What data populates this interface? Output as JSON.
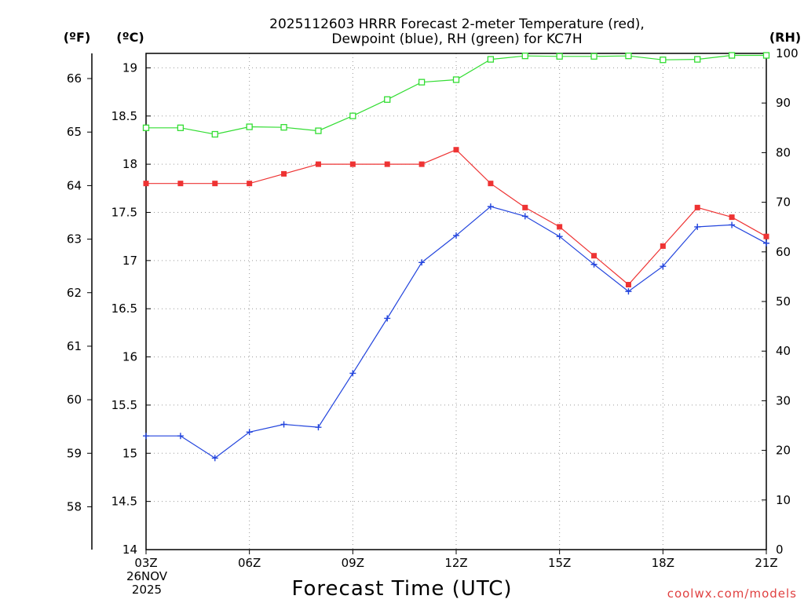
{
  "chart_data": {
    "type": "line",
    "title_line1": "2025112603 HRRR Forecast 2-meter Temperature (red),",
    "title_line2": "Dewpoint (blue), RH (green) for KC7H",
    "xlabel": "Forecast Time (UTC)",
    "credit": "coolwx.com/models",
    "date_label_line1": "26NOV",
    "date_label_line2": "2025",
    "units": {
      "fahrenheit": "(ºF)",
      "celsius": "(ºC)",
      "rh": "(RH)"
    },
    "x_hours": [
      3,
      4,
      5,
      6,
      7,
      8,
      9,
      10,
      11,
      12,
      13,
      14,
      15,
      16,
      17,
      18,
      19,
      20,
      21
    ],
    "x_ticks": [
      "03Z",
      "06Z",
      "09Z",
      "12Z",
      "15Z",
      "18Z",
      "21Z"
    ],
    "y_celsius": {
      "ylim": [
        14.0,
        19.15
      ],
      "ticks": [
        "14",
        "14.5",
        "15",
        "15.5",
        "16",
        "16.5",
        "17",
        "17.5",
        "18",
        "18.5",
        "19"
      ]
    },
    "y_fahrenheit": {
      "ticks": [
        "58",
        "59",
        "60",
        "61",
        "62",
        "63",
        "64",
        "65",
        "66"
      ]
    },
    "y_rh": {
      "ylim": [
        0,
        100
      ],
      "ticks": [
        "0",
        "10",
        "20",
        "30",
        "40",
        "50",
        "60",
        "70",
        "80",
        "90",
        "100"
      ]
    },
    "series": [
      {
        "name": "Temperature",
        "color": "#ee3333",
        "marker": "filled-square",
        "axis": "celsius",
        "values": [
          17.8,
          17.8,
          17.8,
          17.8,
          17.9,
          18.0,
          18.0,
          18.0,
          18.0,
          18.15,
          17.8,
          17.55,
          17.35,
          17.05,
          16.75,
          17.15,
          17.55,
          17.45,
          17.25
        ]
      },
      {
        "name": "Dewpoint",
        "color": "#2244dd",
        "marker": "plus",
        "axis": "celsius",
        "values": [
          15.18,
          15.18,
          14.95,
          15.22,
          15.3,
          15.27,
          15.83,
          16.4,
          16.98,
          17.26,
          17.56,
          17.46,
          17.25,
          16.96,
          16.68,
          16.94,
          17.35,
          17.37,
          17.18
        ]
      },
      {
        "name": "RH",
        "color": "#33dd33",
        "marker": "open-square",
        "axis": "rh",
        "values": [
          85.0,
          85.0,
          83.7,
          85.2,
          85.1,
          84.4,
          87.4,
          90.7,
          94.2,
          94.7,
          98.8,
          99.5,
          99.4,
          99.4,
          99.5,
          98.7,
          98.8,
          99.6,
          99.6
        ]
      }
    ]
  }
}
